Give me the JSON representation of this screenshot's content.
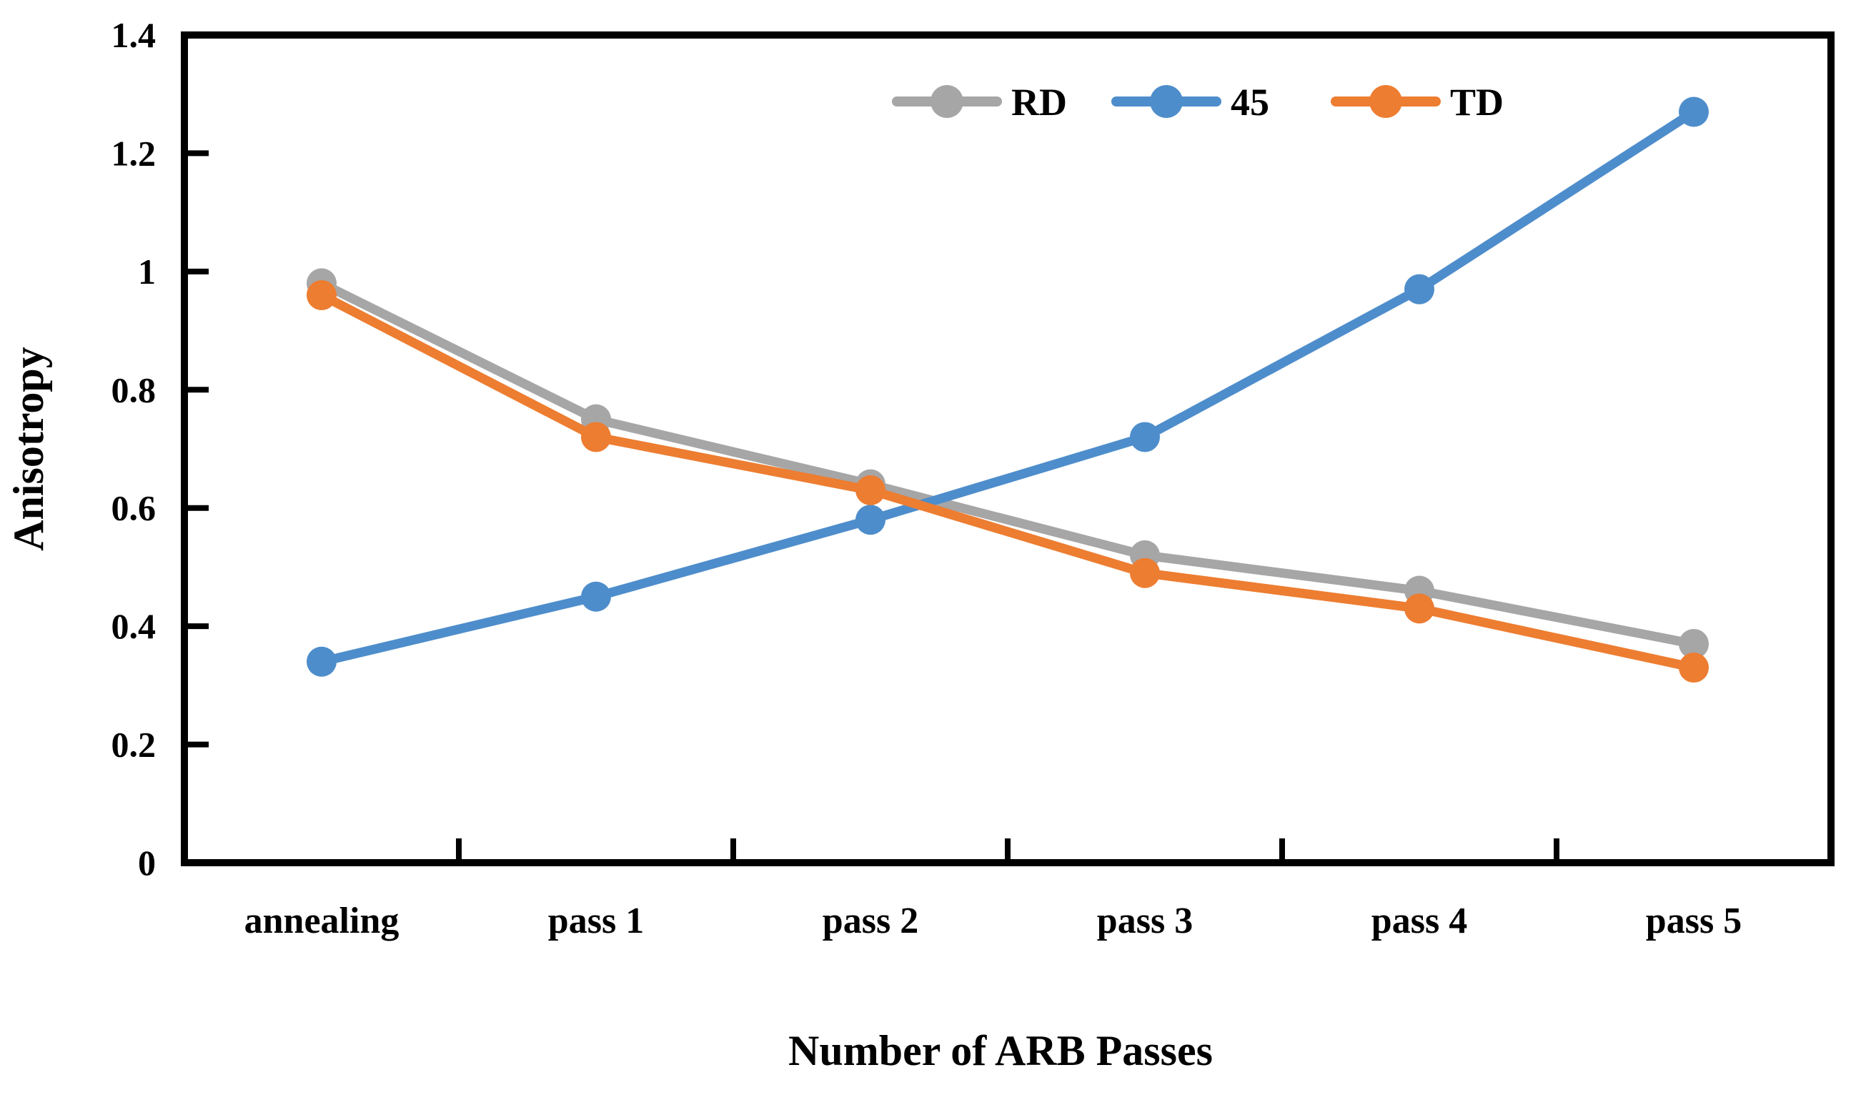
{
  "figure": {
    "background": "#ffffff",
    "axis_color": "#000000"
  },
  "chart_data": {
    "type": "line",
    "title": "",
    "xlabel": "Number of ARB Passes",
    "ylabel": "Anisotropy",
    "categories": [
      "annealing",
      "pass 1",
      "pass 2",
      "pass 3",
      "pass 4",
      "pass 5"
    ],
    "series": [
      {
        "name": "RD",
        "color": "#a6a6a6",
        "values": [
          0.98,
          0.75,
          0.64,
          0.52,
          0.46,
          0.37
        ]
      },
      {
        "name": "45",
        "color": "#4e8dcb",
        "values": [
          0.34,
          0.45,
          0.58,
          0.72,
          0.97,
          1.27
        ]
      },
      {
        "name": "TD",
        "color": "#ed7d31",
        "values": [
          0.96,
          0.72,
          0.63,
          0.49,
          0.43,
          0.33
        ]
      }
    ],
    "ylim": [
      0,
      1.4
    ],
    "ytick_step": 0.2,
    "y_tick_labels": [
      "0",
      "0.2",
      "0.4",
      "0.6",
      "0.8",
      "1",
      "1.2",
      "1.4"
    ],
    "grid": false,
    "legend_position": "top-right-inside",
    "marker": "circle",
    "line_style": "solid"
  }
}
